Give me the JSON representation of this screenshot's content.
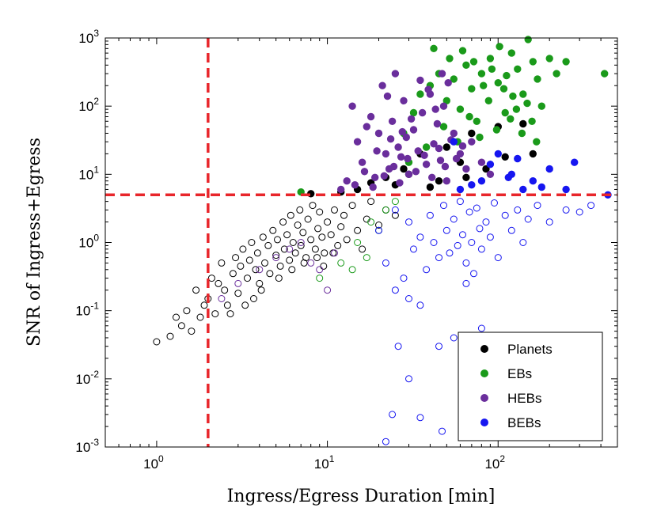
{
  "chart_data": {
    "type": "scatter",
    "title": "",
    "xlabel": "Ingress/Egress Duration [min]",
    "ylabel": "SNR of Ingress+Egress",
    "xscale": "log",
    "yscale": "log",
    "xlim": [
      0.5,
      500
    ],
    "ylim": [
      0.001,
      1000
    ],
    "x_ticks": [
      {
        "value": 1,
        "base": "10",
        "exp": "0"
      },
      {
        "value": 10,
        "base": "10",
        "exp": "1"
      },
      {
        "value": 100,
        "base": "10",
        "exp": "2"
      }
    ],
    "y_ticks": [
      {
        "value": 0.001,
        "base": "10",
        "exp": "-3"
      },
      {
        "value": 0.01,
        "base": "10",
        "exp": "-2"
      },
      {
        "value": 0.1,
        "base": "10",
        "exp": "-1"
      },
      {
        "value": 1,
        "base": "10",
        "exp": "0"
      },
      {
        "value": 10,
        "base": "10",
        "exp": "1"
      },
      {
        "value": 100,
        "base": "10",
        "exp": "2"
      },
      {
        "value": 1000,
        "base": "10",
        "exp": "3"
      }
    ],
    "thresholds": {
      "x": 2,
      "y": 5,
      "color": "#e8262b"
    },
    "legend": {
      "location": "bottom-right",
      "entries": [
        {
          "label": "Planets",
          "color": "#000000"
        },
        {
          "label": "EBs",
          "color": "#1a9a1a"
        },
        {
          "label": "HEBs",
          "color": "#6a2e9c"
        },
        {
          "label": "BEBs",
          "color": "#1616f0"
        }
      ]
    },
    "series": [
      {
        "name": "Planets",
        "color": "#000000",
        "points": [
          [
            1.0,
            0.035
          ],
          [
            1.2,
            0.042
          ],
          [
            1.3,
            0.08
          ],
          [
            1.4,
            0.06
          ],
          [
            1.5,
            0.1
          ],
          [
            1.6,
            0.05
          ],
          [
            1.7,
            0.2
          ],
          [
            1.8,
            0.08
          ],
          [
            1.9,
            0.12
          ],
          [
            2.0,
            0.15
          ],
          [
            2.1,
            0.3
          ],
          [
            2.2,
            0.09
          ],
          [
            2.3,
            0.25
          ],
          [
            2.4,
            0.5
          ],
          [
            2.5,
            0.2
          ],
          [
            2.6,
            0.12
          ],
          [
            2.8,
            0.35
          ],
          [
            2.9,
            0.6
          ],
          [
            3.0,
            0.18
          ],
          [
            3.1,
            0.45
          ],
          [
            3.2,
            0.8
          ],
          [
            3.4,
            0.3
          ],
          [
            3.5,
            0.55
          ],
          [
            3.6,
            1.0
          ],
          [
            3.8,
            0.4
          ],
          [
            3.9,
            0.7
          ],
          [
            4.0,
            0.25
          ],
          [
            4.2,
            1.2
          ],
          [
            4.3,
            0.5
          ],
          [
            4.5,
            0.9
          ],
          [
            4.6,
            0.35
          ],
          [
            4.8,
            1.5
          ],
          [
            5.0,
            0.65
          ],
          [
            5.1,
            1.1
          ],
          [
            5.3,
            0.45
          ],
          [
            5.5,
            2.0
          ],
          [
            5.6,
            0.8
          ],
          [
            5.8,
            1.3
          ],
          [
            6.0,
            0.55
          ],
          [
            6.1,
            2.5
          ],
          [
            6.3,
            1.0
          ],
          [
            6.5,
            0.7
          ],
          [
            6.7,
            1.8
          ],
          [
            6.9,
            3.0
          ],
          [
            7.0,
            0.9
          ],
          [
            7.2,
            1.4
          ],
          [
            7.5,
            0.6
          ],
          [
            7.7,
            2.2
          ],
          [
            8.0,
            1.1
          ],
          [
            8.2,
            3.5
          ],
          [
            8.5,
            0.8
          ],
          [
            8.8,
            1.6
          ],
          [
            9.0,
            2.8
          ],
          [
            9.3,
            1.2
          ],
          [
            9.6,
            0.7
          ],
          [
            10.0,
            2.0
          ],
          [
            10.5,
            1.3
          ],
          [
            11.0,
            3.0
          ],
          [
            11.5,
            0.9
          ],
          [
            12.0,
            1.7
          ],
          [
            12.5,
            2.5
          ],
          [
            13.0,
            1.1
          ],
          [
            14.0,
            3.5
          ],
          [
            15.0,
            1.5
          ],
          [
            16.0,
            0.8
          ],
          [
            17.0,
            2.2
          ],
          [
            18.0,
            4.0
          ],
          [
            20.0,
            1.8
          ],
          [
            22.0,
            3.0
          ],
          [
            25.0,
            2.5
          ],
          [
            3.3,
            0.12
          ],
          [
            4.1,
            0.2
          ],
          [
            5.2,
            0.3
          ],
          [
            6.2,
            0.4
          ],
          [
            7.3,
            0.5
          ],
          [
            2.7,
            0.09
          ],
          [
            3.7,
            0.15
          ],
          [
            8.7,
            0.6
          ],
          [
            9.5,
            0.45
          ],
          [
            10.8,
            0.7
          ],
          [
            8.0,
            5.2
          ],
          [
            12.0,
            5.5
          ],
          [
            15.0,
            6.0
          ],
          [
            18.0,
            7.5
          ],
          [
            22.0,
            9.0
          ],
          [
            28.0,
            12.0
          ],
          [
            35.0,
            20.0
          ],
          [
            45.0,
            8.0
          ],
          [
            60.0,
            15.0
          ],
          [
            70.0,
            40.0
          ],
          [
            85.0,
            12.0
          ],
          [
            100.0,
            50.0
          ],
          [
            140.0,
            55.0
          ],
          [
            160.0,
            20.0
          ],
          [
            50.0,
            25.0
          ],
          [
            40.0,
            6.5
          ],
          [
            30.0,
            10.0
          ],
          [
            25.0,
            7.0
          ],
          [
            65.0,
            9.0
          ],
          [
            110.0,
            18.0
          ]
        ]
      },
      {
        "name": "EBs",
        "color": "#1a9a1a",
        "points": [
          [
            7.0,
            5.5
          ],
          [
            9.0,
            0.3
          ],
          [
            12.0,
            0.5
          ],
          [
            15.0,
            1.0
          ],
          [
            18.0,
            2.0
          ],
          [
            20.0,
            1.5
          ],
          [
            22.0,
            3.0
          ],
          [
            25.0,
            4.0
          ],
          [
            14.0,
            0.4
          ],
          [
            17.0,
            0.6
          ],
          [
            28.0,
            40.0
          ],
          [
            32.0,
            80.0
          ],
          [
            35.0,
            150.0
          ],
          [
            40.0,
            200.0
          ],
          [
            45.0,
            300.0
          ],
          [
            50.0,
            120.0
          ],
          [
            55.0,
            250.0
          ],
          [
            60.0,
            90.0
          ],
          [
            65.0,
            400.0
          ],
          [
            70.0,
            180.0
          ],
          [
            75.0,
            60.0
          ],
          [
            80.0,
            300.0
          ],
          [
            90.0,
            500.0
          ],
          [
            100.0,
            220.0
          ],
          [
            110.0,
            80.0
          ],
          [
            120.0,
            600.0
          ],
          [
            130.0,
            350.0
          ],
          [
            140.0,
            150.0
          ],
          [
            150.0,
            950.0
          ],
          [
            160.0,
            450.0
          ],
          [
            170.0,
            250.0
          ],
          [
            180.0,
            100.0
          ],
          [
            200.0,
            500.0
          ],
          [
            220.0,
            300.0
          ],
          [
            250.0,
            450.0
          ],
          [
            420.0,
            300.0
          ],
          [
            38.0,
            25.0
          ],
          [
            48.0,
            50.0
          ],
          [
            58.0,
            30.0
          ],
          [
            68.0,
            70.0
          ],
          [
            78.0,
            35.0
          ],
          [
            88.0,
            120.0
          ],
          [
            98.0,
            45.0
          ],
          [
            108.0,
            180.0
          ],
          [
            118.0,
            65.0
          ],
          [
            128.0,
            90.0
          ],
          [
            138.0,
            40.0
          ],
          [
            148.0,
            110.0
          ],
          [
            158.0,
            60.0
          ],
          [
            168.0,
            30.0
          ],
          [
            30.0,
            15.0
          ],
          [
            42.0,
            700.0
          ],
          [
            52.0,
            500.0
          ],
          [
            62.0,
            650.0
          ],
          [
            72.0,
            450.0
          ],
          [
            82.0,
            200.0
          ],
          [
            92.0,
            350.0
          ],
          [
            102.0,
            750.0
          ],
          [
            112.0,
            280.0
          ],
          [
            122.0,
            140.0
          ]
        ]
      },
      {
        "name": "HEBs",
        "color": "#6a2e9c",
        "points": [
          [
            2.4,
            0.15
          ],
          [
            3.0,
            0.25
          ],
          [
            4.0,
            0.4
          ],
          [
            5.0,
            0.6
          ],
          [
            6.0,
            0.8
          ],
          [
            7.0,
            1.0
          ],
          [
            8.0,
            0.5
          ],
          [
            9.0,
            0.4
          ],
          [
            10.0,
            0.2
          ],
          [
            11.0,
            0.7
          ],
          [
            13.0,
            8.0
          ],
          [
            14.0,
            100.0
          ],
          [
            15.0,
            30.0
          ],
          [
            16.0,
            15.0
          ],
          [
            17.0,
            50.0
          ],
          [
            18.0,
            70.0
          ],
          [
            19.0,
            9.0
          ],
          [
            20.0,
            40.0
          ],
          [
            21.0,
            200.0
          ],
          [
            22.0,
            20.0
          ],
          [
            23.0,
            12.0
          ],
          [
            24.0,
            60.0
          ],
          [
            25.0,
            300.0
          ],
          [
            26.0,
            25.0
          ],
          [
            27.0,
            18.0
          ],
          [
            28.0,
            120.0
          ],
          [
            29.0,
            35.0
          ],
          [
            30.0,
            10.0
          ],
          [
            32.0,
            45.0
          ],
          [
            34.0,
            22.0
          ],
          [
            36.0,
            80.0
          ],
          [
            38.0,
            14.0
          ],
          [
            40.0,
            150.0
          ],
          [
            42.0,
            28.0
          ],
          [
            44.0,
            55.0
          ],
          [
            46.0,
            16.0
          ],
          [
            48.0,
            100.0
          ],
          [
            50.0,
            8.0
          ],
          [
            55.0,
            40.0
          ],
          [
            60.0,
            20.0
          ],
          [
            65.0,
            12.0
          ],
          [
            70.0,
            30.0
          ],
          [
            80.0,
            15.0
          ],
          [
            90.0,
            10.0
          ],
          [
            12.0,
            6.0
          ],
          [
            14.5,
            7.0
          ],
          [
            16.5,
            11.0
          ],
          [
            18.5,
            6.5
          ],
          [
            21.5,
            9.5
          ],
          [
            24.5,
            13.0
          ],
          [
            26.5,
            7.5
          ],
          [
            29.5,
            17.0
          ],
          [
            33.0,
            11.0
          ],
          [
            37.0,
            19.0
          ],
          [
            41.0,
            9.0
          ],
          [
            45.0,
            24.0
          ],
          [
            49.0,
            13.0
          ],
          [
            53.0,
            32.0
          ],
          [
            57.0,
            17.0
          ],
          [
            62.0,
            26.0
          ],
          [
            19.5,
            22.0
          ],
          [
            23.5,
            33.0
          ],
          [
            27.5,
            42.0
          ],
          [
            31.0,
            65.0
          ],
          [
            35.0,
            240.0
          ],
          [
            39.0,
            175.0
          ],
          [
            43.0,
            90.0
          ],
          [
            47.0,
            300.0
          ],
          [
            51.0,
            220.0
          ],
          [
            22.5,
            140.0
          ]
        ]
      },
      {
        "name": "BEBs",
        "color": "#1616f0",
        "points": [
          [
            20.0,
            1.5
          ],
          [
            22.0,
            0.5
          ],
          [
            25.0,
            3.0
          ],
          [
            28.0,
            0.3
          ],
          [
            30.0,
            2.0
          ],
          [
            32.0,
            0.8
          ],
          [
            35.0,
            1.2
          ],
          [
            38.0,
            0.4
          ],
          [
            40.0,
            2.5
          ],
          [
            42.0,
            1.0
          ],
          [
            45.0,
            0.6
          ],
          [
            48.0,
            3.5
          ],
          [
            50.0,
            1.5
          ],
          [
            52.0,
            0.7
          ],
          [
            55.0,
            2.2
          ],
          [
            58.0,
            0.9
          ],
          [
            60.0,
            4.0
          ],
          [
            62.0,
            1.3
          ],
          [
            65.0,
            0.5
          ],
          [
            68.0,
            2.8
          ],
          [
            70.0,
            1.0
          ],
          [
            72.0,
            0.35
          ],
          [
            75.0,
            3.2
          ],
          [
            78.0,
            1.6
          ],
          [
            80.0,
            0.8
          ],
          [
            85.0,
            2.0
          ],
          [
            90.0,
            1.2
          ],
          [
            95.0,
            3.8
          ],
          [
            100.0,
            0.6
          ],
          [
            110.0,
            2.5
          ],
          [
            120.0,
            1.5
          ],
          [
            130.0,
            3.0
          ],
          [
            140.0,
            1.0
          ],
          [
            150.0,
            2.2
          ],
          [
            170.0,
            3.5
          ],
          [
            200.0,
            2.0
          ],
          [
            250.0,
            3.0
          ],
          [
            300.0,
            2.8
          ],
          [
            350.0,
            3.5
          ],
          [
            65.0,
            0.25
          ],
          [
            30.0,
            0.15
          ],
          [
            25.0,
            0.2
          ],
          [
            35.0,
            0.12
          ],
          [
            26.0,
            0.03
          ],
          [
            30.0,
            0.01
          ],
          [
            45.0,
            0.03
          ],
          [
            55.0,
            0.04
          ],
          [
            80.0,
            0.055
          ],
          [
            22.0,
            0.0012
          ],
          [
            24.0,
            0.003
          ],
          [
            35.0,
            0.0027
          ],
          [
            47.0,
            0.0017
          ],
          [
            60.0,
            6.0
          ],
          [
            80.0,
            8.0
          ],
          [
            100.0,
            20.0
          ],
          [
            120.0,
            10.0
          ],
          [
            140.0,
            6.0
          ],
          [
            160.0,
            8.0
          ],
          [
            200.0,
            12.0
          ],
          [
            250.0,
            6.0
          ],
          [
            280.0,
            15.0
          ],
          [
            440.0,
            5.0
          ],
          [
            70.0,
            7.0
          ],
          [
            90.0,
            14.0
          ],
          [
            130.0,
            17.0
          ],
          [
            180.0,
            6.5
          ],
          [
            55.0,
            30.0
          ],
          [
            115.0,
            9.0
          ]
        ]
      }
    ]
  }
}
